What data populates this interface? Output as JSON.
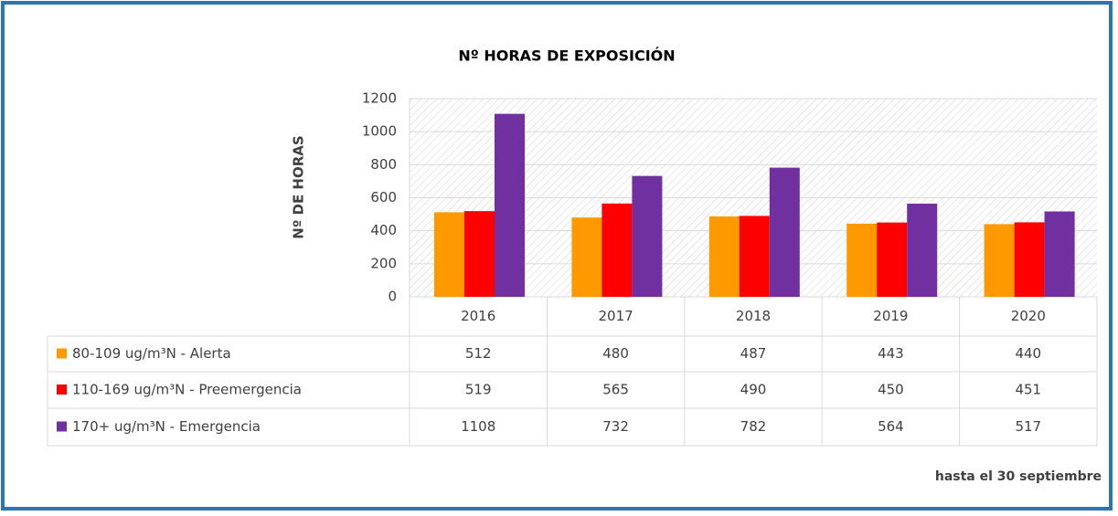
{
  "chart_data": {
    "type": "bar",
    "title": "Nº HORAS DE EXPOSICIÓN",
    "y_label": "Nº DE HORAS",
    "footnote": "hasta el 30 septiembre",
    "categories": [
      "2016",
      "2017",
      "2018",
      "2019",
      "2020"
    ],
    "series": [
      {
        "name": "80-109 ug/m³N - Alerta",
        "color": "#ff9900",
        "values": [
          512,
          480,
          487,
          443,
          440
        ]
      },
      {
        "name": "110-169 ug/m³N - Preemergencia",
        "color": "#ff0000",
        "values": [
          519,
          565,
          490,
          450,
          451
        ]
      },
      {
        "name": "170+ ug/m³N - Emergencia",
        "color": "#7030a0",
        "values": [
          1108,
          732,
          782,
          564,
          517
        ]
      }
    ],
    "ylim": [
      0,
      1200
    ],
    "yticks": [
      0,
      200,
      400,
      600,
      800,
      1000,
      1200
    ],
    "grid": true
  }
}
